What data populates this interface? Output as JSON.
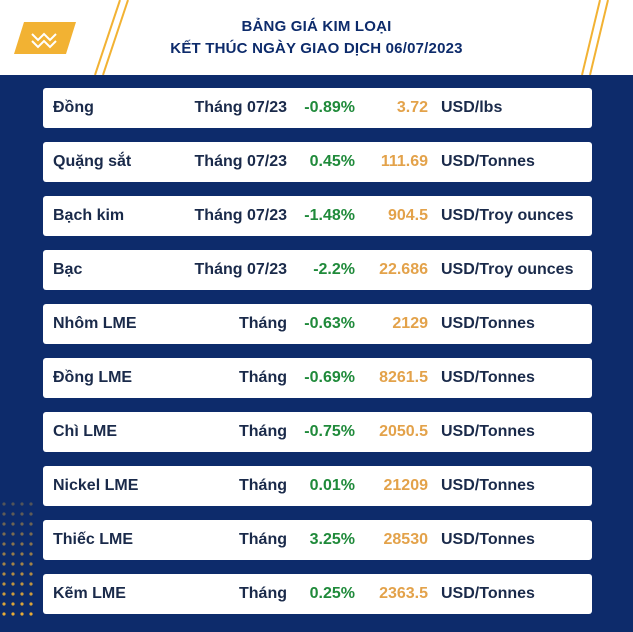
{
  "header": {
    "title_line1": "BẢNG GIÁ KIM LOẠI",
    "title_line2": "KẾT THÚC NGÀY GIAO DỊCH 06/07/2023"
  },
  "colors": {
    "background": "#0d2b6b",
    "accent": "#f2b233",
    "change_color": "#1f8a3a",
    "price_color": "#e3a24a"
  },
  "rows": [
    {
      "name": "Đồng",
      "month": "Tháng 07/23",
      "change": "-0.89%",
      "price": "3.72",
      "unit": "USD/lbs"
    },
    {
      "name": "Quặng sắt",
      "month": "Tháng 07/23",
      "change": "0.45%",
      "price": "111.69",
      "unit": "USD/Tonnes"
    },
    {
      "name": "Bạch kim",
      "month": "Tháng 07/23",
      "change": "-1.48%",
      "price": "904.5",
      "unit": "USD/Troy ounces"
    },
    {
      "name": "Bạc",
      "month": "Tháng 07/23",
      "change": "-2.2%",
      "price": "22.686",
      "unit": "USD/Troy ounces"
    },
    {
      "name": "Nhôm LME",
      "month": "Tháng",
      "change": "-0.63%",
      "price": "2129",
      "unit": "USD/Tonnes"
    },
    {
      "name": "Đồng LME",
      "month": "Tháng",
      "change": "-0.69%",
      "price": "8261.5",
      "unit": "USD/Tonnes"
    },
    {
      "name": "Chì LME",
      "month": "Tháng",
      "change": "-0.75%",
      "price": "2050.5",
      "unit": "USD/Tonnes"
    },
    {
      "name": "Nickel LME",
      "month": "Tháng",
      "change": "0.01%",
      "price": "21209",
      "unit": "USD/Tonnes"
    },
    {
      "name": "Thiếc LME",
      "month": "Tháng",
      "change": "3.25%",
      "price": "28530",
      "unit": "USD/Tonnes"
    },
    {
      "name": "Kẽm LME",
      "month": "Tháng",
      "change": "0.25%",
      "price": "2363.5",
      "unit": "USD/Tonnes"
    }
  ]
}
